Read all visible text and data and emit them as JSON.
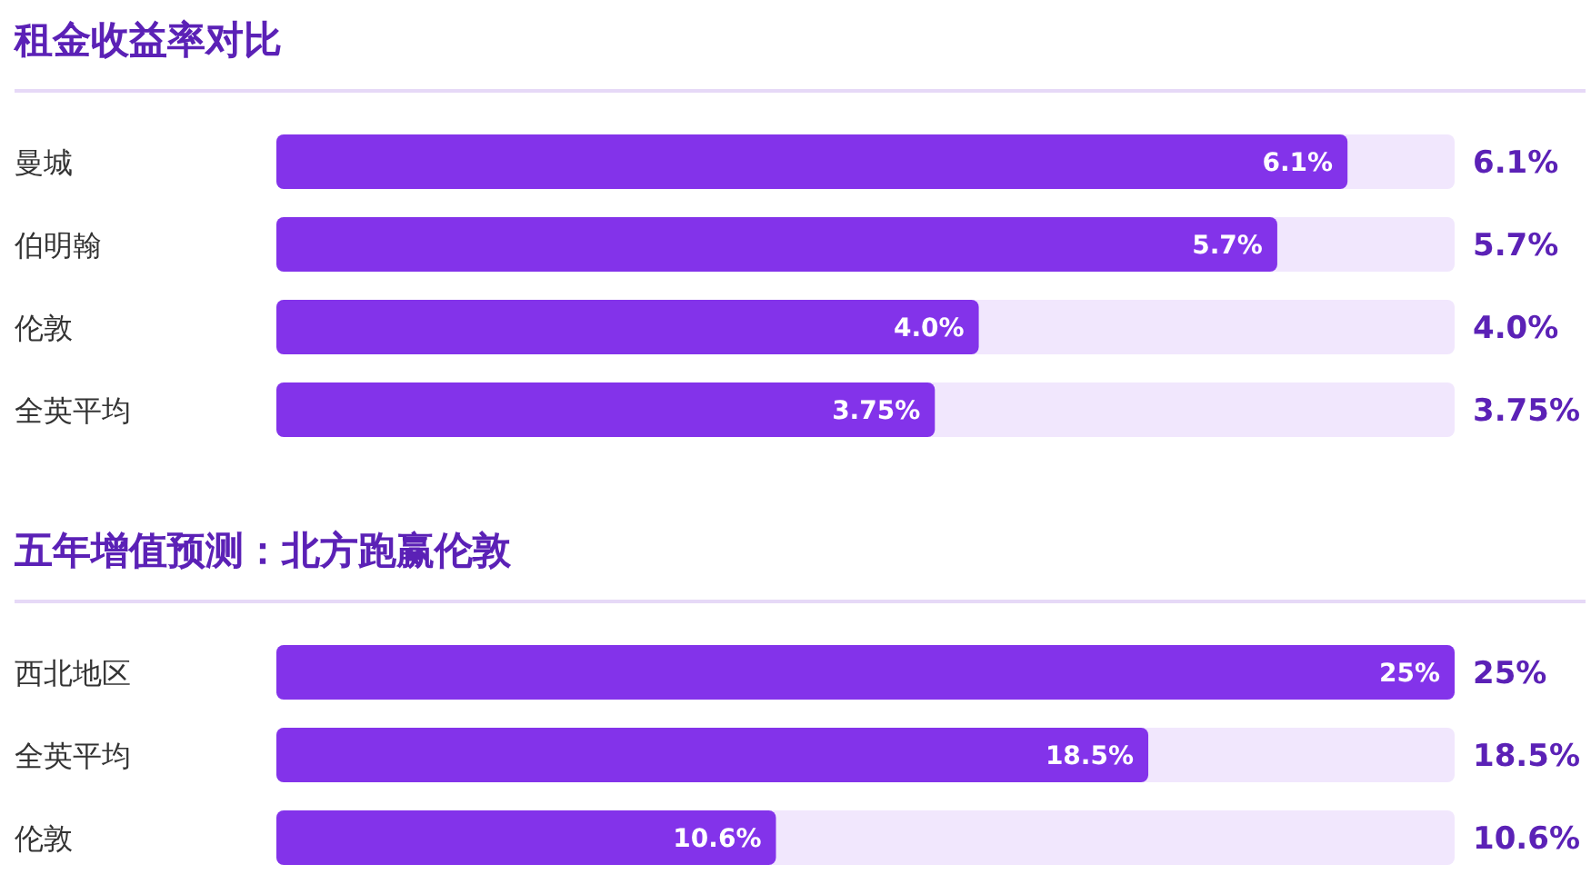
{
  "chart_data": [
    {
      "type": "bar",
      "orientation": "horizontal",
      "title": "租金收益率对比",
      "categories": [
        "曼城",
        "伯明翰",
        "伦敦",
        "全英平均"
      ],
      "values": [
        6.1,
        5.7,
        4.0,
        3.75
      ],
      "value_labels": [
        "6.1%",
        "5.7%",
        "4.0%",
        "3.75%"
      ],
      "color": "#8333ea",
      "xlim": [
        0,
        6.71
      ],
      "tick_labels": false
    },
    {
      "type": "bar",
      "orientation": "horizontal",
      "title": "五年增值预测：北方跑赢伦敦",
      "categories": [
        "西北地区",
        "全英平均",
        "伦敦"
      ],
      "values": [
        25,
        18.5,
        10.6
      ],
      "value_labels": [
        "25%",
        "18.5%",
        "10.6%"
      ],
      "color": "#8333ea",
      "xlim": [
        0,
        25
      ],
      "tick_labels": false
    }
  ]
}
